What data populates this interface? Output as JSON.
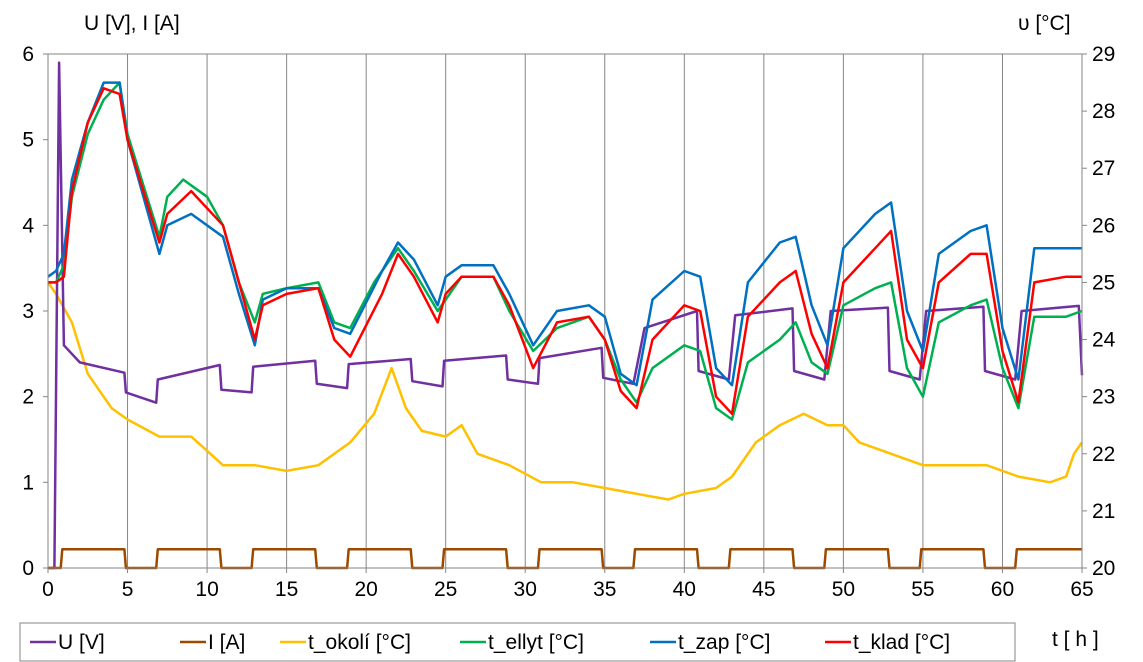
{
  "chart_data": {
    "type": "line",
    "left_axis_label": "U [V], I [A]",
    "right_axis_label": "υ [°C]",
    "x_axis_label": "t [ h ]",
    "xlim": [
      0,
      65
    ],
    "ylim_left": [
      0,
      6
    ],
    "ylim_right": [
      20,
      29
    ],
    "x_ticks": [
      "0",
      "5",
      "10",
      "15",
      "20",
      "25",
      "30",
      "35",
      "40",
      "45",
      "50",
      "55",
      "60",
      "65"
    ],
    "y_left_ticks": [
      "0",
      "1",
      "2",
      "3",
      "4",
      "5",
      "6"
    ],
    "y_right_ticks": [
      "20",
      "21",
      "22",
      "23",
      "24",
      "25",
      "26",
      "27",
      "28",
      "29"
    ],
    "grid": "vertical",
    "legend_position": "bottom",
    "series": [
      {
        "name": "U [V]",
        "axis": "left",
        "color": "#7030A0",
        "points": [
          [
            0,
            0
          ],
          [
            0.4,
            0
          ],
          [
            0.7,
            5.9
          ],
          [
            1.0,
            2.6
          ],
          [
            2,
            2.4
          ],
          [
            4.8,
            2.28
          ],
          [
            4.9,
            2.05
          ],
          [
            6.8,
            1.93
          ],
          [
            6.9,
            2.2
          ],
          [
            10.8,
            2.37
          ],
          [
            10.9,
            2.08
          ],
          [
            12.8,
            2.05
          ],
          [
            12.9,
            2.35
          ],
          [
            16.8,
            2.42
          ],
          [
            16.9,
            2.15
          ],
          [
            18.8,
            2.1
          ],
          [
            18.9,
            2.38
          ],
          [
            22.8,
            2.44
          ],
          [
            22.9,
            2.18
          ],
          [
            24.8,
            2.12
          ],
          [
            24.9,
            2.42
          ],
          [
            28.8,
            2.48
          ],
          [
            28.9,
            2.2
          ],
          [
            30.8,
            2.15
          ],
          [
            30.9,
            2.45
          ],
          [
            34.8,
            2.57
          ],
          [
            34.9,
            2.22
          ],
          [
            36.8,
            2.15
          ],
          [
            37.5,
            2.8
          ],
          [
            40.8,
            3.0
          ],
          [
            40.9,
            2.3
          ],
          [
            42.8,
            2.2
          ],
          [
            43.2,
            2.95
          ],
          [
            46.8,
            3.03
          ],
          [
            46.9,
            2.3
          ],
          [
            48.8,
            2.2
          ],
          [
            49.2,
            3.0
          ],
          [
            52.8,
            3.04
          ],
          [
            52.9,
            2.3
          ],
          [
            54.8,
            2.2
          ],
          [
            55.2,
            3.0
          ],
          [
            58.8,
            3.05
          ],
          [
            58.9,
            2.3
          ],
          [
            60.8,
            2.2
          ],
          [
            61.2,
            3.0
          ],
          [
            64.8,
            3.06
          ],
          [
            65,
            2.25
          ]
        ]
      },
      {
        "name": "I [A]",
        "axis": "left",
        "color": "#9C4A00",
        "points": [
          [
            0,
            0
          ],
          [
            0.8,
            0
          ],
          [
            0.9,
            0.22
          ],
          [
            4.8,
            0.22
          ],
          [
            4.9,
            0
          ],
          [
            6.8,
            0
          ],
          [
            6.9,
            0.22
          ],
          [
            10.8,
            0.22
          ],
          [
            10.9,
            0
          ],
          [
            12.8,
            0
          ],
          [
            12.9,
            0.22
          ],
          [
            16.8,
            0.22
          ],
          [
            16.9,
            0
          ],
          [
            18.8,
            0
          ],
          [
            18.9,
            0.22
          ],
          [
            22.8,
            0.22
          ],
          [
            22.9,
            0
          ],
          [
            24.8,
            0
          ],
          [
            24.9,
            0.22
          ],
          [
            28.8,
            0.22
          ],
          [
            28.9,
            0
          ],
          [
            30.8,
            0
          ],
          [
            30.9,
            0.22
          ],
          [
            34.8,
            0.22
          ],
          [
            34.9,
            0
          ],
          [
            36.8,
            0
          ],
          [
            36.9,
            0.22
          ],
          [
            40.8,
            0.22
          ],
          [
            40.9,
            0
          ],
          [
            42.8,
            0
          ],
          [
            42.9,
            0.22
          ],
          [
            46.8,
            0.22
          ],
          [
            46.9,
            0
          ],
          [
            48.8,
            0
          ],
          [
            48.9,
            0.22
          ],
          [
            52.8,
            0.22
          ],
          [
            52.9,
            0
          ],
          [
            54.8,
            0
          ],
          [
            54.9,
            0.22
          ],
          [
            58.8,
            0.22
          ],
          [
            58.9,
            0
          ],
          [
            60.8,
            0
          ],
          [
            60.9,
            0.22
          ],
          [
            65,
            0.22
          ]
        ]
      },
      {
        "name": "t_okolí [°C]",
        "axis": "right",
        "color": "#FFC000",
        "points": [
          [
            0,
            25.0
          ],
          [
            0.5,
            24.8
          ],
          [
            1.5,
            24.3
          ],
          [
            2.5,
            23.4
          ],
          [
            4,
            22.8
          ],
          [
            5,
            22.6
          ],
          [
            7,
            22.3
          ],
          [
            9,
            22.3
          ],
          [
            11,
            21.8
          ],
          [
            13,
            21.8
          ],
          [
            15,
            21.7
          ],
          [
            17,
            21.8
          ],
          [
            19,
            22.2
          ],
          [
            20.5,
            22.7
          ],
          [
            21.6,
            23.5
          ],
          [
            22.5,
            22.8
          ],
          [
            23.5,
            22.4
          ],
          [
            25,
            22.3
          ],
          [
            26,
            22.5
          ],
          [
            27,
            22.0
          ],
          [
            29,
            21.8
          ],
          [
            31,
            21.5
          ],
          [
            33,
            21.5
          ],
          [
            35,
            21.4
          ],
          [
            37,
            21.3
          ],
          [
            39,
            21.2
          ],
          [
            40,
            21.3
          ],
          [
            42,
            21.4
          ],
          [
            43,
            21.6
          ],
          [
            44.5,
            22.2
          ],
          [
            46,
            22.5
          ],
          [
            47.5,
            22.7
          ],
          [
            49,
            22.5
          ],
          [
            50,
            22.5
          ],
          [
            51,
            22.2
          ],
          [
            53,
            22.0
          ],
          [
            55,
            21.8
          ],
          [
            57,
            21.8
          ],
          [
            59,
            21.8
          ],
          [
            61,
            21.6
          ],
          [
            63,
            21.5
          ],
          [
            64,
            21.6
          ],
          [
            64.5,
            22.0
          ],
          [
            65,
            22.2
          ]
        ]
      },
      {
        "name": "t_ellyt [°C]",
        "axis": "right",
        "color": "#00B050",
        "points": [
          [
            0,
            25.0
          ],
          [
            0.5,
            25.0
          ],
          [
            1.0,
            25.3
          ],
          [
            1.5,
            26.5
          ],
          [
            2.5,
            27.6
          ],
          [
            3.5,
            28.2
          ],
          [
            4.5,
            28.5
          ],
          [
            5,
            27.6
          ],
          [
            6,
            26.7
          ],
          [
            7,
            25.8
          ],
          [
            7.5,
            26.5
          ],
          [
            8.5,
            26.8
          ],
          [
            10,
            26.5
          ],
          [
            11,
            26.0
          ],
          [
            12,
            25.0
          ],
          [
            13,
            24.3
          ],
          [
            13.5,
            24.8
          ],
          [
            15,
            24.9
          ],
          [
            17,
            25.0
          ],
          [
            18,
            24.3
          ],
          [
            19,
            24.2
          ],
          [
            20.5,
            25.0
          ],
          [
            22,
            25.6
          ],
          [
            23,
            25.2
          ],
          [
            24.5,
            24.5
          ],
          [
            25,
            24.7
          ],
          [
            26,
            25.1
          ],
          [
            28,
            25.1
          ],
          [
            29,
            24.5
          ],
          [
            30.5,
            23.8
          ],
          [
            32,
            24.2
          ],
          [
            34,
            24.4
          ],
          [
            35,
            24.0
          ],
          [
            36,
            23.3
          ],
          [
            37,
            22.9
          ],
          [
            38,
            23.5
          ],
          [
            40,
            23.9
          ],
          [
            41,
            23.8
          ],
          [
            42,
            22.8
          ],
          [
            43,
            22.6
          ],
          [
            44,
            23.6
          ],
          [
            46,
            24.0
          ],
          [
            47,
            24.3
          ],
          [
            48,
            23.6
          ],
          [
            49,
            23.4
          ],
          [
            50,
            24.6
          ],
          [
            52,
            24.9
          ],
          [
            53,
            25.0
          ],
          [
            54,
            23.5
          ],
          [
            55,
            23.0
          ],
          [
            56,
            24.3
          ],
          [
            58,
            24.6
          ],
          [
            59,
            24.7
          ],
          [
            60,
            23.5
          ],
          [
            61,
            22.8
          ],
          [
            62,
            24.4
          ],
          [
            64,
            24.4
          ],
          [
            65,
            24.5
          ]
        ]
      },
      {
        "name": "t_zap [°C]",
        "axis": "right",
        "color": "#0070C0",
        "points": [
          [
            0,
            25.1
          ],
          [
            0.5,
            25.2
          ],
          [
            1.0,
            25.5
          ],
          [
            1.5,
            26.8
          ],
          [
            2.5,
            27.8
          ],
          [
            3.5,
            28.5
          ],
          [
            4.5,
            28.5
          ],
          [
            5,
            27.5
          ],
          [
            6,
            26.5
          ],
          [
            7,
            25.5
          ],
          [
            7.5,
            26.0
          ],
          [
            9,
            26.2
          ],
          [
            11,
            25.8
          ],
          [
            12,
            24.8
          ],
          [
            13,
            23.9
          ],
          [
            13.5,
            24.7
          ],
          [
            15,
            24.9
          ],
          [
            17,
            24.9
          ],
          [
            18,
            24.2
          ],
          [
            19,
            24.1
          ],
          [
            21,
            25.2
          ],
          [
            22,
            25.7
          ],
          [
            23,
            25.4
          ],
          [
            24.5,
            24.6
          ],
          [
            25,
            25.1
          ],
          [
            26,
            25.3
          ],
          [
            28,
            25.3
          ],
          [
            29,
            24.8
          ],
          [
            30.5,
            23.9
          ],
          [
            32,
            24.5
          ],
          [
            34,
            24.6
          ],
          [
            35,
            24.4
          ],
          [
            36,
            23.4
          ],
          [
            37,
            23.2
          ],
          [
            38,
            24.7
          ],
          [
            40,
            25.2
          ],
          [
            41,
            25.1
          ],
          [
            42,
            23.5
          ],
          [
            43,
            23.2
          ],
          [
            44,
            25.0
          ],
          [
            46,
            25.7
          ],
          [
            47,
            25.8
          ],
          [
            48,
            24.6
          ],
          [
            49,
            23.9
          ],
          [
            50,
            25.6
          ],
          [
            52,
            26.2
          ],
          [
            53,
            26.4
          ],
          [
            54,
            24.5
          ],
          [
            55,
            23.8
          ],
          [
            56,
            25.5
          ],
          [
            58,
            25.9
          ],
          [
            59,
            26.0
          ],
          [
            60,
            24.2
          ],
          [
            61,
            23.3
          ],
          [
            62,
            25.6
          ],
          [
            64,
            25.6
          ],
          [
            65,
            25.6
          ]
        ]
      },
      {
        "name": "t_klad [°C]",
        "axis": "right",
        "color": "#FF0000",
        "points": [
          [
            0,
            25.0
          ],
          [
            0.5,
            25.0
          ],
          [
            1.0,
            25.1
          ],
          [
            1.5,
            26.6
          ],
          [
            2.5,
            27.8
          ],
          [
            3.5,
            28.4
          ],
          [
            4.5,
            28.3
          ],
          [
            5,
            27.5
          ],
          [
            6,
            26.6
          ],
          [
            7,
            25.7
          ],
          [
            7.5,
            26.2
          ],
          [
            9,
            26.6
          ],
          [
            11,
            26.0
          ],
          [
            12,
            25.0
          ],
          [
            13,
            24.0
          ],
          [
            13.5,
            24.6
          ],
          [
            15,
            24.8
          ],
          [
            17,
            24.9
          ],
          [
            18,
            24.0
          ],
          [
            19,
            23.7
          ],
          [
            21,
            24.8
          ],
          [
            22,
            25.5
          ],
          [
            23,
            25.1
          ],
          [
            24.5,
            24.3
          ],
          [
            25,
            24.8
          ],
          [
            26,
            25.1
          ],
          [
            28,
            25.1
          ],
          [
            29,
            24.6
          ],
          [
            30.5,
            23.5
          ],
          [
            32,
            24.3
          ],
          [
            34,
            24.4
          ],
          [
            35,
            24.0
          ],
          [
            36,
            23.1
          ],
          [
            37,
            22.8
          ],
          [
            38,
            24.0
          ],
          [
            40,
            24.6
          ],
          [
            41,
            24.5
          ],
          [
            42,
            23.0
          ],
          [
            43,
            22.7
          ],
          [
            44,
            24.4
          ],
          [
            46,
            25.0
          ],
          [
            47,
            25.2
          ],
          [
            48,
            24.1
          ],
          [
            49,
            23.5
          ],
          [
            50,
            25.0
          ],
          [
            52,
            25.6
          ],
          [
            53,
            25.9
          ],
          [
            54,
            24.0
          ],
          [
            55,
            23.5
          ],
          [
            56,
            25.0
          ],
          [
            58,
            25.5
          ],
          [
            59,
            25.5
          ],
          [
            60,
            23.8
          ],
          [
            61,
            22.9
          ],
          [
            62,
            25.0
          ],
          [
            64,
            25.1
          ],
          [
            65,
            25.1
          ]
        ]
      }
    ]
  }
}
